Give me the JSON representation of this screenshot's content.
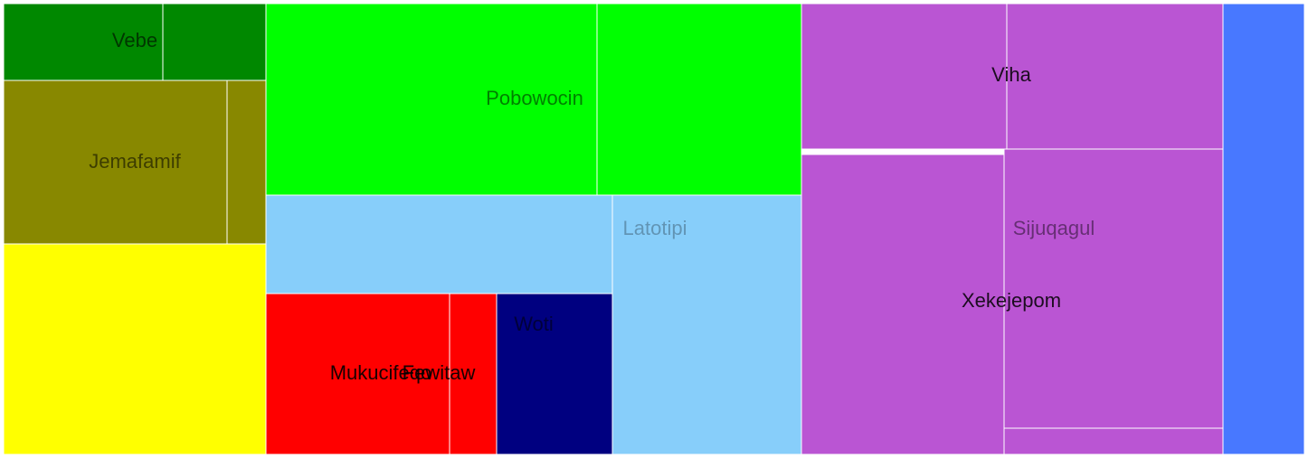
{
  "chart_data": {
    "type": "treemap",
    "tiles": [
      {
        "id": "t1",
        "color": "#008800",
        "label": "Vebe"
      },
      {
        "id": "t2",
        "color": "#008800",
        "label": ""
      },
      {
        "id": "t3",
        "color": "#888800",
        "label": "Jemafamif"
      },
      {
        "id": "t4",
        "color": "#888800",
        "label": ""
      },
      {
        "id": "t5",
        "color": "#ffff00",
        "label": ""
      },
      {
        "id": "t6",
        "color": "#00ff00",
        "label": "Pobowocin"
      },
      {
        "id": "t7",
        "color": "#00ff00",
        "label": ""
      },
      {
        "id": "t8",
        "color": "#87cefa",
        "label": ""
      },
      {
        "id": "t9",
        "color": "#87cefa",
        "label": "Latotipi"
      },
      {
        "id": "t10",
        "color": "#ff0000",
        "label": "Mukucifeqo"
      },
      {
        "id": "t11",
        "color": "#ff0000",
        "label": "Fewitaw"
      },
      {
        "id": "t12",
        "color": "#000080",
        "label": "Woti"
      },
      {
        "id": "t13",
        "color": "#ba55d3",
        "label": "Viha"
      },
      {
        "id": "t14",
        "color": "#ba55d3",
        "label": ""
      },
      {
        "id": "t15",
        "color": "#ba55d3",
        "label": "Xekejepom"
      },
      {
        "id": "t16",
        "color": "#ba55d3",
        "label": "Sijuqagul"
      },
      {
        "id": "t17",
        "color": "#ba55d3",
        "label": ""
      },
      {
        "id": "t18",
        "color": "#4878ff",
        "label": ""
      }
    ]
  }
}
